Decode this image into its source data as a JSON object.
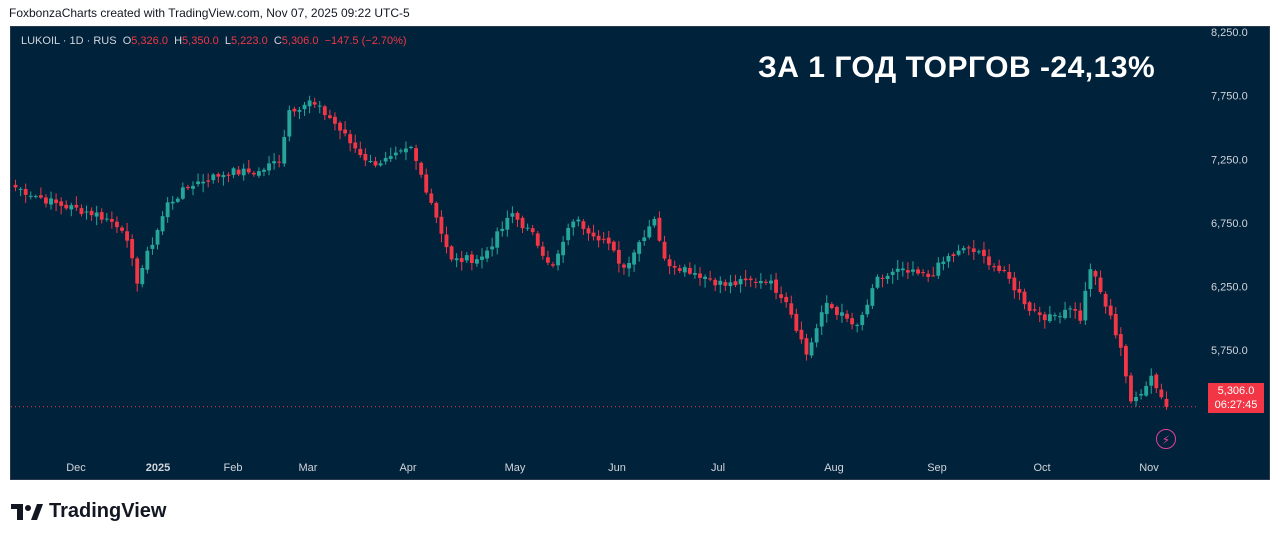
{
  "header": {
    "caption": "FoxbonzaCharts created with TradingView.com, Nov 07, 2025 09:22 UTC-5"
  },
  "legend": {
    "symbol": "LUKOIL · 1D · RUS",
    "o_label": "O",
    "o_value": "5,326.0",
    "h_label": "H",
    "h_value": "5,350.0",
    "l_label": "L",
    "l_value": "5,223.0",
    "c_label": "C",
    "c_value": "5,306.0",
    "change": "−147.5 (−2.70%)"
  },
  "headline": "ЗА 1 ГОД ТОРГОВ -24,13%",
  "price_tag": {
    "price": "5,306.0",
    "countdown": "06:27:45"
  },
  "brand": {
    "name": "TradingView"
  },
  "colors": {
    "background": "#00223a",
    "up": "#26a69a",
    "down": "#f23645",
    "text": "#d1d4dc"
  },
  "icons": {
    "alert": "lightning-icon",
    "logo": "tradingview-logo-icon"
  },
  "chart_data": {
    "type": "candlestick",
    "series_name": "LUKOIL · 1D · RUS",
    "x_labels": [
      "Dec",
      "2025",
      "Feb",
      "Mar",
      "Apr",
      "May",
      "Jun",
      "Jul",
      "Aug",
      "Sep",
      "Oct",
      "Nov"
    ],
    "y_ticks": [
      "8,250.0",
      "7,750.0",
      "7,250.0",
      "6,750.0",
      "6,250.0",
      "5,750.0"
    ],
    "y_range": [
      4950,
      8290
    ],
    "last_price": 5306.0,
    "close_path": [
      [
        0,
        7030
      ],
      [
        8,
        6900
      ],
      [
        16,
        6820
      ],
      [
        21,
        6720
      ],
      [
        24,
        6300
      ],
      [
        30,
        6900
      ],
      [
        35,
        7060
      ],
      [
        42,
        7150
      ],
      [
        48,
        7150
      ],
      [
        52,
        7250
      ],
      [
        54,
        7640
      ],
      [
        58,
        7700
      ],
      [
        62,
        7580
      ],
      [
        66,
        7380
      ],
      [
        70,
        7220
      ],
      [
        74,
        7250
      ],
      [
        78,
        7330
      ],
      [
        82,
        6920
      ],
      [
        86,
        6450
      ],
      [
        92,
        6480
      ],
      [
        98,
        6820
      ],
      [
        102,
        6650
      ],
      [
        106,
        6400
      ],
      [
        110,
        6780
      ],
      [
        116,
        6620
      ],
      [
        120,
        6400
      ],
      [
        126,
        6800
      ],
      [
        128,
        6450
      ],
      [
        133,
        6380
      ],
      [
        140,
        6260
      ],
      [
        148,
        6310
      ],
      [
        152,
        6150
      ],
      [
        156,
        5720
      ],
      [
        160,
        6120
      ],
      [
        166,
        5920
      ],
      [
        170,
        6300
      ],
      [
        174,
        6370
      ],
      [
        180,
        6330
      ],
      [
        184,
        6480
      ],
      [
        188,
        6550
      ],
      [
        192,
        6450
      ],
      [
        196,
        6300
      ],
      [
        200,
        6080
      ],
      [
        204,
        6000
      ],
      [
        208,
        6100
      ],
      [
        210,
        6000
      ],
      [
        212,
        6400
      ],
      [
        216,
        6000
      ],
      [
        218,
        5780
      ],
      [
        220,
        5320
      ],
      [
        224,
        5550
      ],
      [
        227,
        5306
      ]
    ]
  }
}
